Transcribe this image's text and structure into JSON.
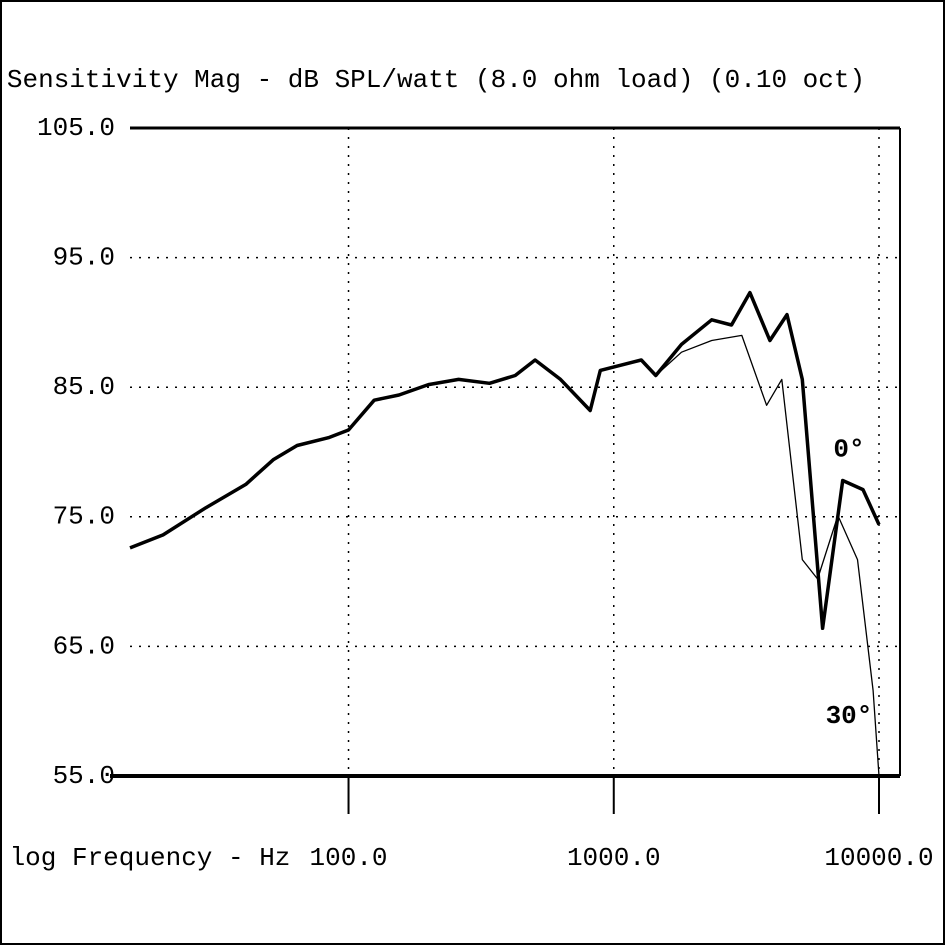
{
  "chart_data": {
    "type": "line",
    "title": "Sensitivity Mag - dB SPL/watt (8.0 ohm load) (0.10 oct)",
    "x_label": "log Frequency - Hz",
    "log_x": true,
    "grid": true,
    "xlim": [
      15,
      12000
    ],
    "xticks": [
      {
        "value": 100,
        "label": "100.0"
      },
      {
        "value": 1000,
        "label": "1000.0"
      },
      {
        "value": 10000,
        "label": "10000.0"
      }
    ],
    "ylim": [
      55,
      105
    ],
    "yticks": [
      {
        "value": 105,
        "label": "105.0"
      },
      {
        "value": 95,
        "label": "95.0"
      },
      {
        "value": 85,
        "label": "85.0"
      },
      {
        "value": 75,
        "label": "75.0"
      },
      {
        "value": 65,
        "label": "65.0"
      },
      {
        "value": 55,
        "label": "55.0"
      }
    ],
    "series": [
      {
        "name": "0°",
        "color": "#000000",
        "width": 3.5,
        "x": [
          15,
          20,
          29,
          41,
          52,
          64,
          84,
          100,
          125,
          155,
          200,
          260,
          340,
          425,
          505,
          630,
          815,
          890,
          1270,
          1440,
          1800,
          2340,
          2780,
          3260,
          3880,
          4500,
          5140,
          6130,
          7300,
          8700,
          10000
        ],
        "values": [
          72.6,
          73.6,
          75.7,
          77.5,
          79.4,
          80.5,
          81.1,
          81.7,
          84.0,
          84.4,
          85.2,
          85.6,
          85.3,
          85.9,
          87.1,
          85.6,
          83.2,
          86.3,
          87.1,
          85.9,
          88.3,
          90.2,
          89.8,
          92.3,
          88.6,
          90.6,
          85.6,
          66.4,
          77.8,
          77.1,
          74.4
        ]
      },
      {
        "name": "30°",
        "color": "#000000",
        "width": 1.3,
        "x": [
          1270,
          1440,
          1800,
          2340,
          3040,
          3770,
          4300,
          5140,
          5870,
          7000,
          8300,
          9500,
          10000
        ],
        "values": [
          87.1,
          85.9,
          87.7,
          88.6,
          89.0,
          83.6,
          85.6,
          71.7,
          70.2,
          75.1,
          71.7,
          61.6,
          55.0
        ]
      }
    ]
  }
}
